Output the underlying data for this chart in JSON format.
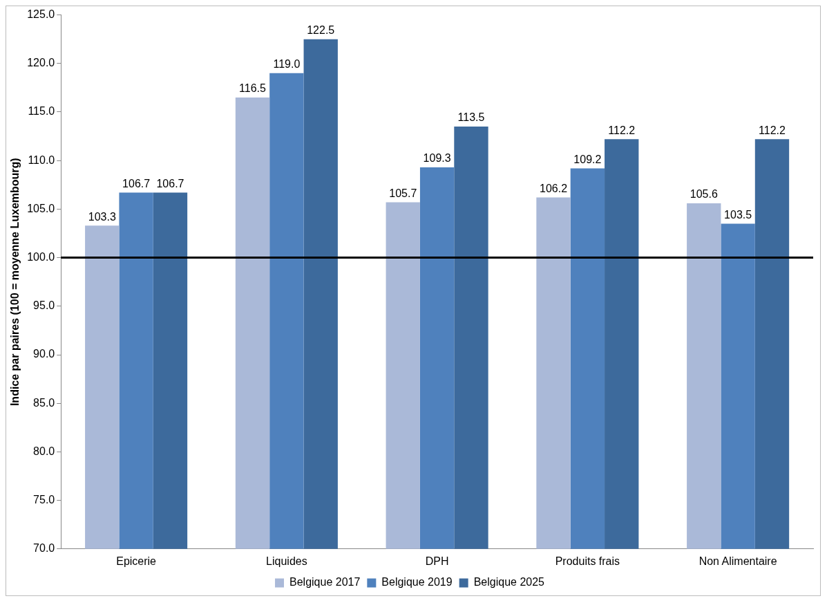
{
  "chart_data": {
    "type": "bar",
    "ylabel": "Indice par paires (100 = moyenne Luxembourg)",
    "categories": [
      "Epicerie",
      "Liquides",
      "DPH",
      "Produits frais",
      "Non Alimentaire"
    ],
    "series": [
      {
        "name": "Belgique 2017",
        "color": "#aab9d8",
        "values": [
          103.3,
          116.5,
          105.7,
          106.2,
          105.6
        ],
        "value_labels": [
          "103.3",
          "116.5",
          "105.7",
          "106.2",
          "105.6"
        ]
      },
      {
        "name": "Belgique 2019",
        "color": "#4f81bd",
        "values": [
          106.7,
          119.0,
          109.3,
          109.2,
          103.5
        ],
        "value_labels": [
          "106.7",
          "119.0",
          "109.3",
          "109.2",
          "103.5"
        ]
      },
      {
        "name": "Belgique 2025",
        "color": "#3d6a9c",
        "values": [
          106.7,
          122.5,
          113.5,
          112.2,
          112.2
        ],
        "value_labels": [
          "106.7",
          "122.5",
          "113.5",
          "112.2",
          "112.2"
        ]
      }
    ],
    "ylim": [
      70,
      125
    ],
    "yticks": [
      {
        "value": 70,
        "label": "70.0"
      },
      {
        "value": 75,
        "label": "75.0"
      },
      {
        "value": 80,
        "label": "80.0"
      },
      {
        "value": 85,
        "label": "85.0"
      },
      {
        "value": 90,
        "label": "90.0"
      },
      {
        "value": 95,
        "label": "95.0"
      },
      {
        "value": 100,
        "label": "100.0"
      },
      {
        "value": 105,
        "label": "105.0"
      },
      {
        "value": 110,
        "label": "110.0"
      },
      {
        "value": 115,
        "label": "115.0"
      },
      {
        "value": 120,
        "label": "120.0"
      },
      {
        "value": 125,
        "label": "125.0"
      }
    ],
    "ref_lines": [
      {
        "axis": "y",
        "value": 100,
        "color": "#000000"
      }
    ],
    "grid": false,
    "legend": "bottom"
  }
}
